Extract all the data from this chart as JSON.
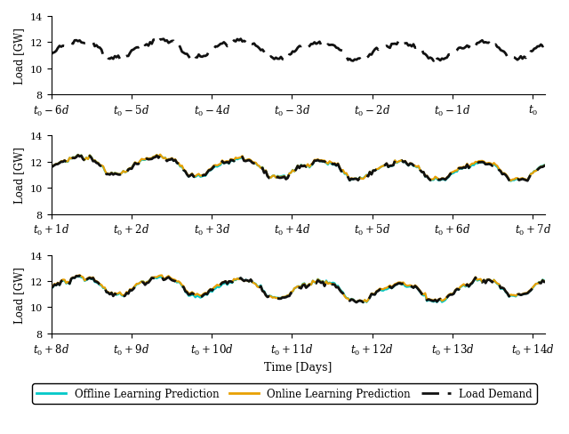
{
  "ylabel": "Load [GW]",
  "xlabel": "Time [Days]",
  "ylim": [
    8,
    14
  ],
  "color_offline": "#00C8C8",
  "color_online": "#E8A000",
  "color_demand": "#111111",
  "lw_pred": 1.6,
  "lw_demand": 2.0,
  "legend_labels": [
    "Offline Learning Prediction",
    "Online Learning Prediction",
    "Load Demand"
  ],
  "subplot1_xticks": [
    -6,
    -5,
    -4,
    -3,
    -2,
    -1,
    0
  ],
  "subplot1_xticklabels": [
    "$t_0 - 6d$",
    "$t_0 - 5d$",
    "$t_0 - 4d$",
    "$t_0 - 3d$",
    "$t_0 - 2d$",
    "$t_0 - 1d$",
    "$t_0$"
  ],
  "subplot2_xticks": [
    1,
    2,
    3,
    4,
    5,
    6,
    7
  ],
  "subplot2_xticklabels": [
    "$t_0 + 1d$",
    "$t_0 + 2d$",
    "$t_0 + 3d$",
    "$t_0 + 4d$",
    "$t_0 + 5d$",
    "$t_0 + 6d$",
    "$t_0 + 7d$"
  ],
  "subplot3_xticks": [
    8,
    9,
    10,
    11,
    12,
    13,
    14
  ],
  "subplot3_xticklabels": [
    "$t_0 + 8d$",
    "$t_0 + 9d$",
    "$t_0 + 10d$",
    "$t_0 + 11d$",
    "$t_0 + 12d$",
    "$t_0 + 13d$",
    "$t_0 + 14d$"
  ]
}
